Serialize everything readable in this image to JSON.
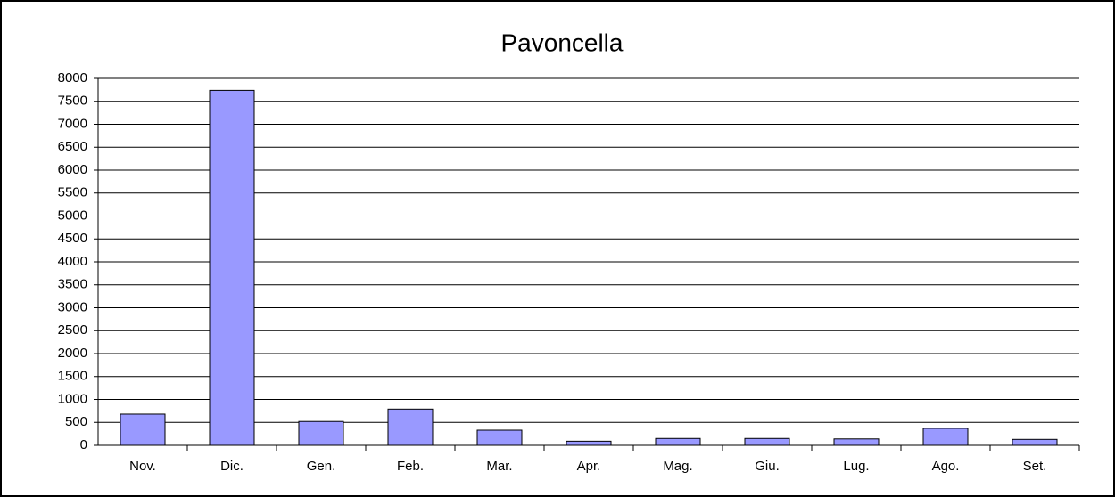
{
  "chart_data": {
    "type": "bar",
    "title": "Pavoncella",
    "categories": [
      "Nov.",
      "Dic.",
      "Gen.",
      "Feb.",
      "Mar.",
      "Apr.",
      "Mag.",
      "Giu.",
      "Lug.",
      "Ago.",
      "Set."
    ],
    "values": [
      680,
      7740,
      520,
      790,
      330,
      90,
      150,
      150,
      140,
      370,
      130
    ],
    "color": "#9999ff",
    "ylim": [
      0,
      8000
    ],
    "yticks": [
      0,
      500,
      1000,
      1500,
      2000,
      2500,
      3000,
      3500,
      4000,
      4500,
      5000,
      5500,
      6000,
      6500,
      7000,
      7500,
      8000
    ],
    "grid": true
  }
}
